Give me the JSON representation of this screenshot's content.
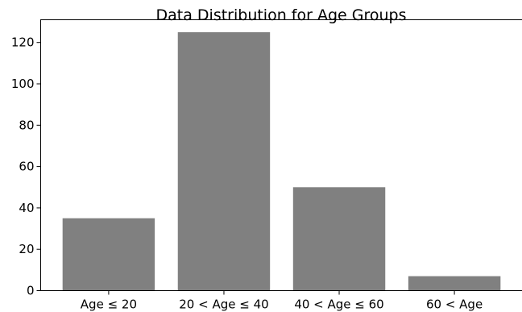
{
  "chart_data": {
    "type": "bar",
    "title": "Data Distribution for Age Groups",
    "xlabel": "",
    "ylabel": "",
    "categories": [
      "Age ≤ 20",
      "20 < Age ≤ 40",
      "40 < Age ≤ 60",
      "60 < Age"
    ],
    "values": [
      35,
      125,
      50,
      7
    ],
    "ylim": [
      0,
      131
    ],
    "yticks": [
      0,
      20,
      40,
      60,
      80,
      100,
      120
    ],
    "bar_color": "#808080",
    "grid": false,
    "legend": "none"
  }
}
